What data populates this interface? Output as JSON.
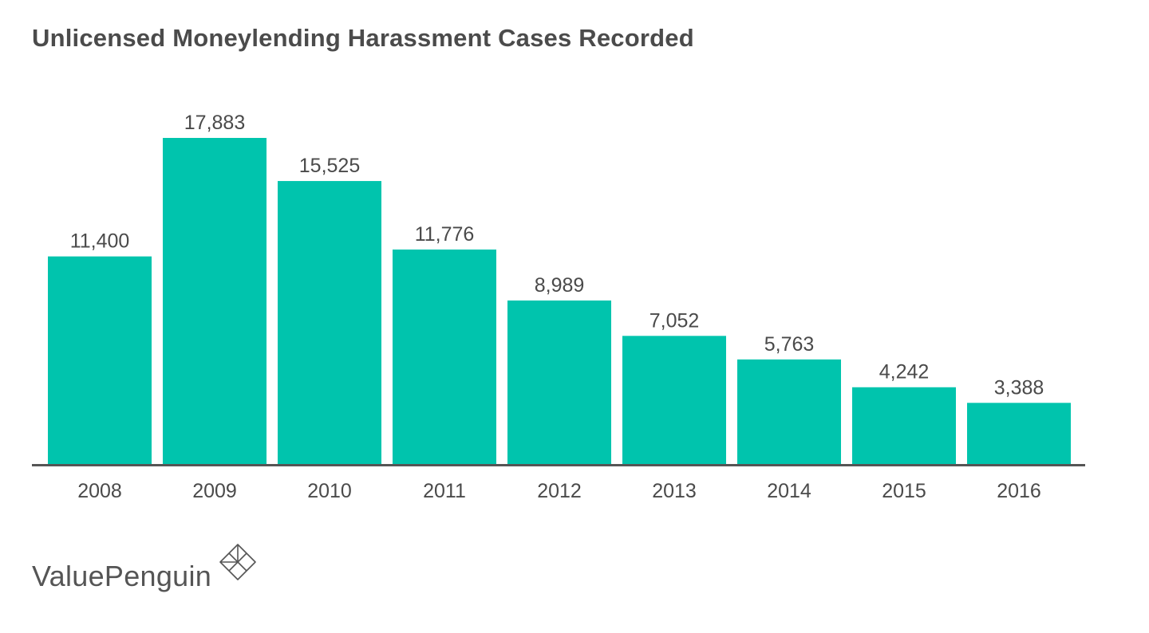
{
  "colors": {
    "bar": "#00c4ad",
    "axis": "#555555",
    "text": "#4a4a4a"
  },
  "chart_data": {
    "type": "bar",
    "title": "Unlicensed Moneylending Harassment Cases Recorded",
    "categories": [
      "2008",
      "2009",
      "2010",
      "2011",
      "2012",
      "2013",
      "2014",
      "2015",
      "2016"
    ],
    "values": [
      11400,
      17883,
      15525,
      11776,
      8989,
      7052,
      5763,
      4242,
      3388
    ],
    "value_labels": [
      "11,400",
      "17,883",
      "15,525",
      "11,776",
      "8,989",
      "7,052",
      "5,763",
      "4,242",
      "3,388"
    ],
    "xlabel": "",
    "ylabel": "",
    "ylim": [
      0,
      17883
    ],
    "grid": false,
    "legend": "none"
  },
  "brand": {
    "name": "ValuePenguin",
    "logo_icon": "valuepenguin-logo-icon"
  }
}
